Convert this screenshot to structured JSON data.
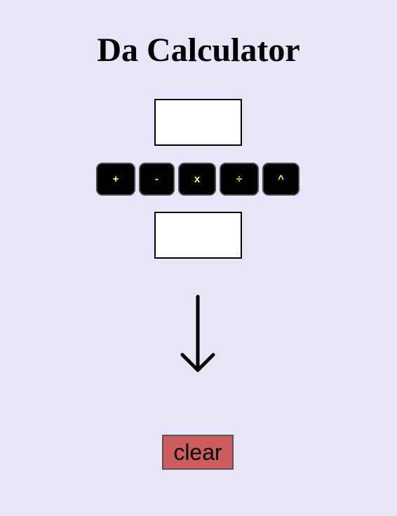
{
  "page": {
    "title": "Da Calculator",
    "background_color": "#e6e6f8"
  },
  "inputs": {
    "first": {
      "value": ""
    },
    "second": {
      "value": ""
    }
  },
  "operators": [
    {
      "label": "+",
      "name": "add"
    },
    {
      "label": "-",
      "name": "subtract"
    },
    {
      "label": "x",
      "name": "multiply"
    },
    {
      "label": "÷",
      "name": "divide"
    },
    {
      "label": "^",
      "name": "power"
    }
  ],
  "operator_style": {
    "background_color": "#000000",
    "text_color": "#ffff33"
  },
  "result_indicator": {
    "icon": "arrow-down-icon"
  },
  "clear_button": {
    "label": "clear",
    "background_color": "#cd5c5c"
  }
}
